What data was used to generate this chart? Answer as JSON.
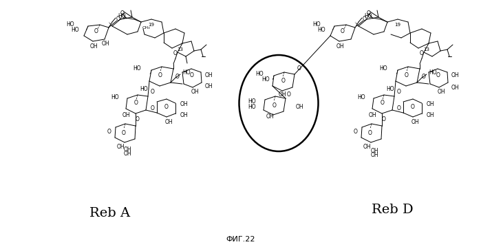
{
  "title": "ФИГ.22",
  "label_left": "Reb A",
  "label_right": "Reb D",
  "bg_color": "#ffffff",
  "text_color": "#000000",
  "fig_width": 6.99,
  "fig_height": 3.62,
  "dpi": 100
}
